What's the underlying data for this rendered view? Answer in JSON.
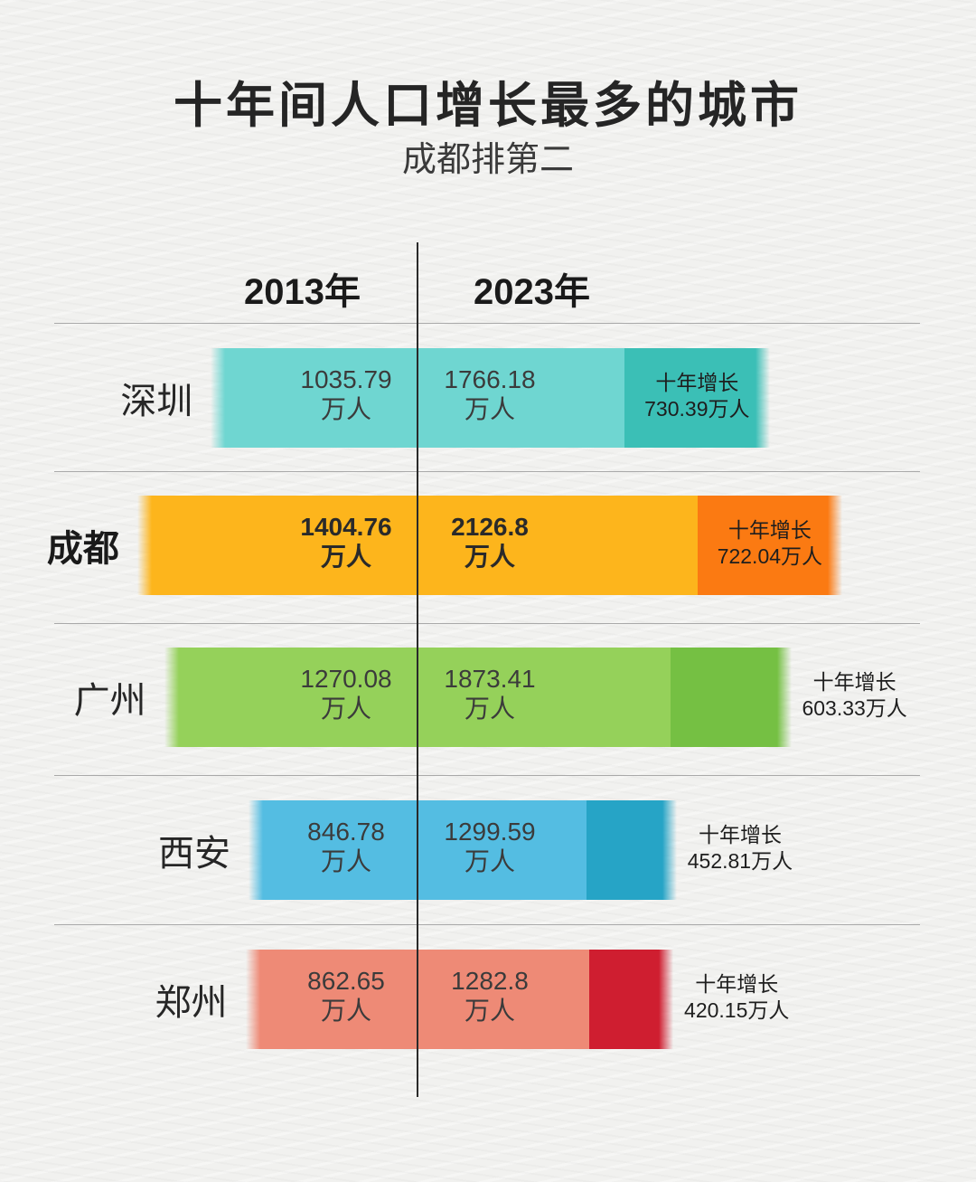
{
  "title": "十年间人口增长最多的城市",
  "subtitle": "成都排第二",
  "chart_data": {
    "type": "bar",
    "title": "十年间人口增长最多的城市",
    "subtitle": "成都排第二",
    "periods": [
      "2013年",
      "2023年"
    ],
    "unit": "万人",
    "growth_label": "十年增长",
    "categories": [
      "深圳",
      "成都",
      "广州",
      "西安",
      "郑州"
    ],
    "series": [
      {
        "name": "2013年",
        "values": [
          1035.79,
          1404.76,
          1270.08,
          846.78,
          862.65
        ]
      },
      {
        "name": "2023年",
        "values": [
          1766.18,
          2126.8,
          1873.41,
          1299.59,
          1282.8
        ]
      },
      {
        "name": "十年增长",
        "values": [
          730.39,
          722.04,
          603.33,
          452.81,
          420.15
        ]
      }
    ],
    "rows": [
      {
        "city": "深圳",
        "v2013": "1035.79",
        "v2023": "1766.18",
        "growth": "730.39万人",
        "highlight": false,
        "base_color": "#6fd6d1",
        "growth_color": "#3bbfb6"
      },
      {
        "city": "成都",
        "v2013": "1404.76",
        "v2023": "2126.8",
        "growth": "722.04万人",
        "highlight": true,
        "base_color": "#fdb51c",
        "growth_color": "#fb7a12"
      },
      {
        "city": "广州",
        "v2013": "1270.08",
        "v2023": "1873.41",
        "growth": "603.33万人",
        "highlight": false,
        "base_color": "#95d15a",
        "growth_color": "#75c043"
      },
      {
        "city": "西安",
        "v2013": "846.78",
        "v2023": "1299.59",
        "growth": "452.81万人",
        "highlight": false,
        "base_color": "#54bde2",
        "growth_color": "#26a4c6"
      },
      {
        "city": "郑州",
        "v2013": "862.65",
        "v2023": "1282.8",
        "growth": "420.15万人",
        "highlight": false,
        "base_color": "#ee8a76",
        "growth_color": "#cf1e30"
      }
    ]
  }
}
